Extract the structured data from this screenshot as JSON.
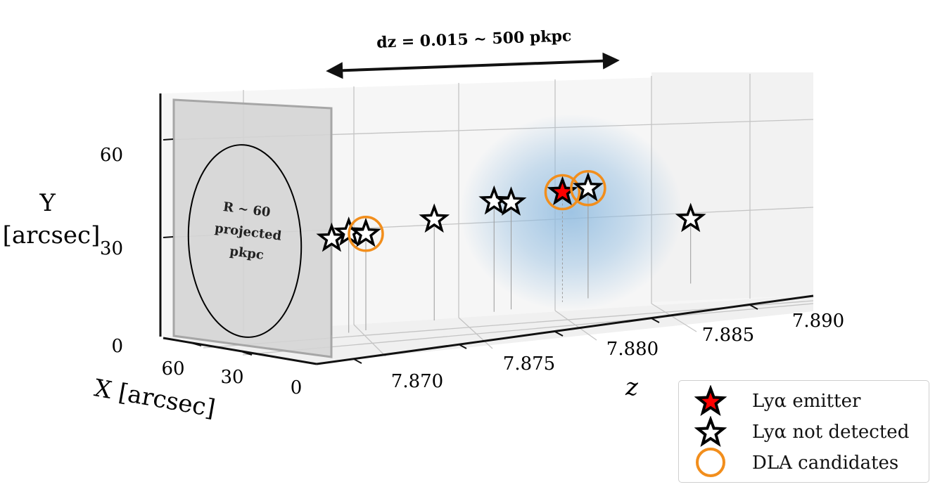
{
  "chart_data": {
    "type": "scatter",
    "projection": "3d",
    "title": "",
    "xlabel": "X [arcsec]",
    "ylabel": "Y\n[arcsec]",
    "zlabel": "z",
    "x_ticks": [
      "60",
      "30",
      "0"
    ],
    "y_ticks": [
      "0",
      "30",
      "60"
    ],
    "z_ticks": [
      "7.870",
      "7.875",
      "7.880",
      "7.885",
      "7.890"
    ],
    "z_range": [
      7.866,
      7.891
    ],
    "annotations": {
      "redshift_span": "dz = 0.015 ~ 500 pkpc",
      "aperture_line1": "R ~ 60",
      "aperture_line2": "projected",
      "aperture_line3": "pkpc"
    },
    "series": [
      {
        "name": "Lyα emitter",
        "color": "#ff0000",
        "points": [
          {
            "z": 7.8815,
            "y": 44,
            "dla": true
          }
        ]
      },
      {
        "name": "Lyα not detected",
        "color": "#ffffff",
        "points": [
          {
            "z": 7.868,
            "y": 31,
            "dla": false
          },
          {
            "z": 7.869,
            "y": 33,
            "dla": false
          },
          {
            "z": 7.87,
            "y": 32,
            "dla": true
          },
          {
            "z": 7.874,
            "y": 36,
            "dla": false
          },
          {
            "z": 7.8775,
            "y": 42,
            "dla": false
          },
          {
            "z": 7.8785,
            "y": 41,
            "dla": false
          },
          {
            "z": 7.883,
            "y": 45,
            "dla": true
          },
          {
            "z": 7.889,
            "y": 28,
            "dla": false
          }
        ]
      }
    ],
    "legend": {
      "position": "bottom-right",
      "entries": [
        {
          "label": "Lyα emitter",
          "marker": "red-star"
        },
        {
          "label": "Lyα not detected",
          "marker": "white-star"
        },
        {
          "label": "DLA candidates",
          "marker": "orange-circle"
        }
      ]
    },
    "colors": {
      "star_edge": "#000000",
      "dla_ring": "#f28e1c",
      "halo": "#8fbbe0",
      "grid": "#bfbfbf",
      "aperture_panel": "#d6d6d6"
    }
  }
}
